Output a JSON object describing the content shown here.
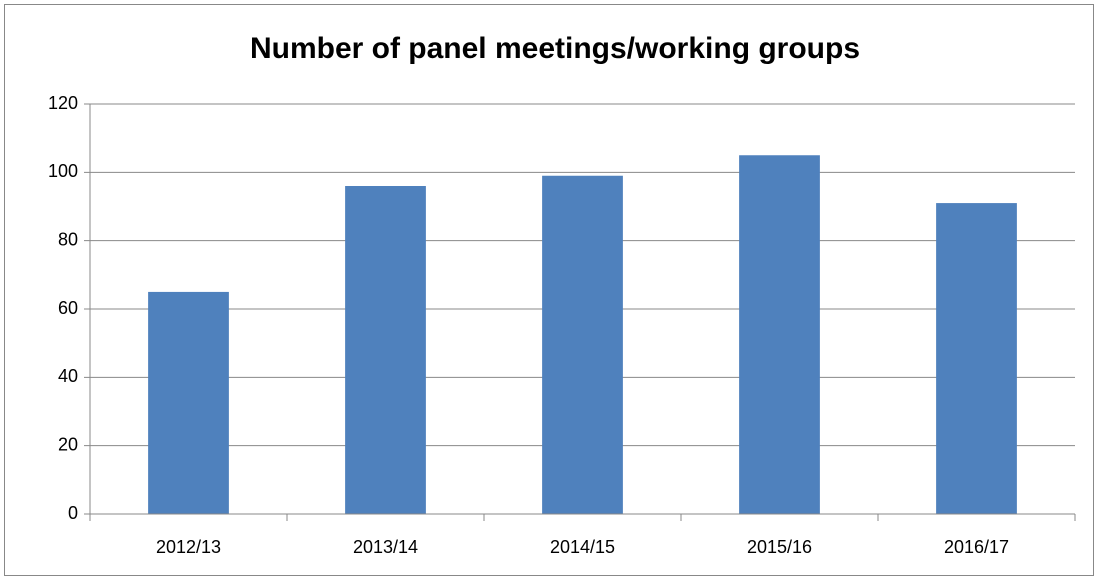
{
  "chart_data": {
    "type": "bar",
    "title": "Number of panel meetings/working groups",
    "categories": [
      "2012/13",
      "2013/14",
      "2014/15",
      "2015/16",
      "2016/17"
    ],
    "values": [
      65,
      96,
      99,
      105,
      91
    ],
    "color": "#4f81bd",
    "ylim": [
      0,
      120
    ],
    "yticks": [
      0,
      20,
      40,
      60,
      80,
      100,
      120
    ],
    "grid": true
  }
}
